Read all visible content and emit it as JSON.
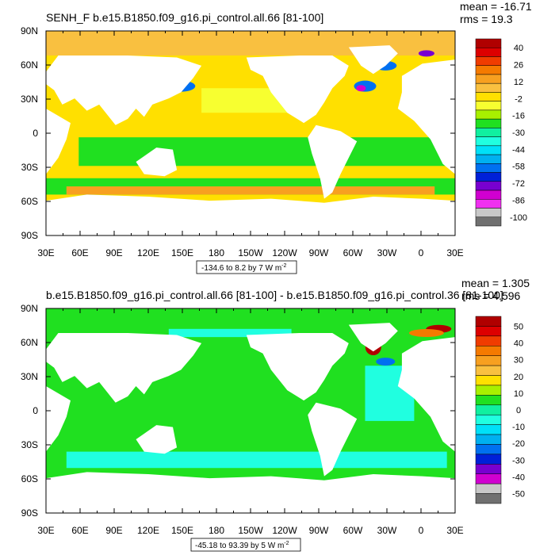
{
  "charts": [
    {
      "type": "heatmap",
      "title": "SENH_F b.e15.B1850.f09_g16.pi_control.all.66 [81-100]",
      "stats": [
        "mean = -16.71",
        "rms = 19.3"
      ],
      "xticks": [
        "30E",
        "60E",
        "90E",
        "120E",
        "150E",
        "180",
        "150W",
        "120W",
        "90W",
        "60W",
        "30W",
        "0",
        "30E"
      ],
      "yticks": [
        "90N",
        "60N",
        "30N",
        "0",
        "30S",
        "60S",
        "90S"
      ],
      "colorbar_labels": [
        "40",
        "26",
        "12",
        "-2",
        "-16",
        "-30",
        "-44",
        "-58",
        "-72",
        "-86",
        "-100"
      ],
      "colors": [
        "#b00000",
        "#dd0000",
        "#f03c00",
        "#f57a00",
        "#f7a020",
        "#f9c040",
        "#ffe000",
        "#f7ff30",
        "#a8f000",
        "#20e020",
        "#10f0a0",
        "#20ffe0",
        "#00e0f8",
        "#00b0f0",
        "#0070f0",
        "#0020d8",
        "#7800d0",
        "#d000d0",
        "#f030f0",
        "#c8c8c8",
        "#707070"
      ],
      "range_note": "-134.6 to 8.2 by 7  W m",
      "range_unit_sup": "-2",
      "base_color": "#ffe000"
    },
    {
      "type": "heatmap",
      "title": "b.e15.B1850.f09_g16.pi_control.all.66 [81-100] - b.e15.B1850.f09_g16.pi_control.36 [81-100]",
      "stats": [
        "mean = 1.305",
        "rms = 4.596"
      ],
      "xticks": [
        "30E",
        "60E",
        "90E",
        "120E",
        "150E",
        "180",
        "150W",
        "120W",
        "90W",
        "60W",
        "30W",
        "0",
        "30E"
      ],
      "yticks": [
        "90N",
        "60N",
        "30N",
        "0",
        "30S",
        "60S",
        "90S"
      ],
      "colorbar_labels": [
        "50",
        "40",
        "30",
        "20",
        "10",
        "0",
        "-10",
        "-20",
        "-30",
        "-40",
        "-50"
      ],
      "colors": [
        "#b00000",
        "#dd0000",
        "#f03c00",
        "#f57a00",
        "#f7a020",
        "#f9c040",
        "#ffe000",
        "#a8f000",
        "#20e020",
        "#10f0a0",
        "#20ffe0",
        "#00e0f8",
        "#00b0f0",
        "#0070f0",
        "#0020d8",
        "#7800d0",
        "#d000d0",
        "#c8c8c8",
        "#707070"
      ],
      "range_note": "-45.18 to 93.39 by 5  W m",
      "range_unit_sup": "-2",
      "base_color": "#20e020"
    }
  ],
  "map_colors": {
    "land": "#ffffff",
    "ice_top": "#f9c040",
    "band_green": "#20e020",
    "band_orange": "#f7a020",
    "band_yellow": "#ffe000",
    "band_cyan": "#20ffe0",
    "band_blue": "#0070f0",
    "band_violet": "#7800d0",
    "band_red": "#dd0000",
    "band_darkred": "#b00000"
  }
}
